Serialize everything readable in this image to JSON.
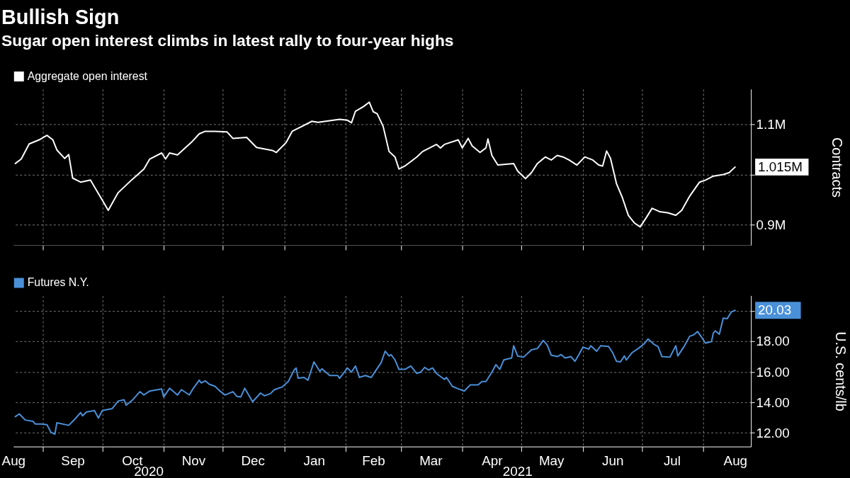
{
  "chart_data": [
    {
      "type": "line",
      "title": "Bullish Sign",
      "subtitle": "Sugar open interest climbs in latest rally to four-year highs",
      "ylabel": "Contracts",
      "grid": true,
      "legend": "top left",
      "tick_labels": "y",
      "xlim": [
        "2020-08-17",
        "2021-08-25"
      ],
      "xticks": [
        {
          "value": "2020-09-01",
          "label": null
        },
        {
          "value": "2020-10-01",
          "label": null
        },
        {
          "value": "2020-11-01",
          "label": null
        },
        {
          "value": "2020-12-01",
          "label": null
        },
        {
          "value": "2021-01-01",
          "label": null
        },
        {
          "value": "2021-02-01",
          "label": null
        },
        {
          "value": "2021-03-01",
          "label": null
        },
        {
          "value": "2021-04-01",
          "label": null
        },
        {
          "value": "2021-05-01",
          "label": null
        },
        {
          "value": "2021-06-01",
          "label": null
        },
        {
          "value": "2021-07-01",
          "label": null
        },
        {
          "value": "2021-08-01",
          "label": null
        }
      ],
      "ylim": [
        0.86,
        1.17
      ],
      "yticks": [
        {
          "value": 0.9,
          "label": "0.9M"
        },
        {
          "value": 1.0,
          "label": null
        },
        {
          "value": 1.1,
          "label": "1.1M"
        }
      ],
      "x": [
        "2020-08-18",
        "2020-08-21",
        "2020-08-25",
        "2020-08-30",
        "2020-09-03",
        "2020-09-06",
        "2020-09-08",
        "2020-09-12",
        "2020-09-14",
        "2020-09-16",
        "2020-09-20",
        "2020-09-25",
        "2020-10-04",
        "2020-10-09",
        "2020-10-16",
        "2020-10-22",
        "2020-10-25",
        "2020-10-31",
        "2020-11-02",
        "2020-11-04",
        "2020-11-08",
        "2020-11-15",
        "2020-11-19",
        "2020-11-22",
        "2020-11-27",
        "2020-12-03",
        "2020-12-06",
        "2020-12-13",
        "2020-12-18",
        "2020-12-26",
        "2020-12-28",
        "2021-01-02",
        "2021-01-05",
        "2021-01-10",
        "2021-01-15",
        "2021-01-18",
        "2021-01-29",
        "2021-02-02",
        "2021-02-04",
        "2021-02-06",
        "2021-02-10",
        "2021-02-13",
        "2021-02-15",
        "2021-02-17",
        "2021-02-20",
        "2021-02-23",
        "2021-02-26",
        "2021-02-28",
        "2021-03-03",
        "2021-03-09",
        "2021-03-12",
        "2021-03-19",
        "2021-03-21",
        "2021-03-23",
        "2021-03-30",
        "2021-04-01",
        "2021-04-04",
        "2021-04-06",
        "2021-04-10",
        "2021-04-13",
        "2021-04-14",
        "2021-04-16",
        "2021-04-19",
        "2021-04-27",
        "2021-04-29",
        "2021-05-03",
        "2021-05-06",
        "2021-05-09",
        "2021-05-13",
        "2021-05-16",
        "2021-05-19",
        "2021-05-22",
        "2021-05-25",
        "2021-05-29",
        "2021-06-02",
        "2021-06-06",
        "2021-06-09",
        "2021-06-11",
        "2021-06-13",
        "2021-06-15",
        "2021-06-18",
        "2021-06-21",
        "2021-06-24",
        "2021-06-27",
        "2021-06-30",
        "2021-07-03",
        "2021-07-06",
        "2021-07-10",
        "2021-07-14",
        "2021-07-18",
        "2021-07-21",
        "2021-07-25",
        "2021-07-30",
        "2021-08-02",
        "2021-08-06",
        "2021-08-11",
        "2021-08-14",
        "2021-08-17"
      ],
      "series": [
        {
          "name": "Aggregate open interest",
          "color": "#ffffff",
          "values": [
            1.022,
            1.031,
            1.061,
            1.069,
            1.078,
            1.069,
            1.049,
            1.032,
            1.04,
            0.993,
            0.985,
            0.989,
            0.929,
            0.964,
            0.99,
            1.011,
            1.031,
            1.043,
            1.031,
            1.043,
            1.039,
            1.064,
            1.081,
            1.086,
            1.086,
            1.085,
            1.072,
            1.074,
            1.054,
            1.048,
            1.044,
            1.064,
            1.086,
            1.096,
            1.106,
            1.104,
            1.11,
            1.108,
            1.103,
            1.126,
            1.135,
            1.144,
            1.125,
            1.121,
            1.096,
            1.046,
            1.035,
            1.011,
            1.017,
            1.035,
            1.046,
            1.06,
            1.053,
            1.06,
            1.069,
            1.053,
            1.072,
            1.057,
            1.044,
            1.053,
            1.071,
            1.038,
            1.019,
            1.022,
            1.007,
            0.992,
            1.004,
            1.022,
            1.035,
            1.029,
            1.038,
            1.035,
            1.029,
            1.019,
            1.035,
            1.029,
            1.019,
            1.017,
            1.047,
            1.032,
            0.982,
            0.954,
            0.919,
            0.904,
            0.896,
            0.914,
            0.933,
            0.926,
            0.924,
            0.919,
            0.929,
            0.957,
            0.985,
            0.989,
            0.997,
            1.0,
            1.004,
            1.015
          ],
          "value_labels": [
            null,
            null,
            null,
            null,
            null,
            null,
            null,
            null,
            null,
            null,
            null,
            null,
            null,
            null,
            null,
            null,
            null,
            null,
            null,
            null,
            null,
            null,
            null,
            null,
            null,
            null,
            null,
            null,
            null,
            null,
            null,
            null,
            null,
            null,
            null,
            null,
            null,
            null,
            null,
            null,
            null,
            null,
            null,
            null,
            null,
            null,
            null,
            null,
            null,
            null,
            null,
            null,
            null,
            null,
            null,
            null,
            null,
            null,
            null,
            null,
            null,
            null,
            null,
            null,
            null,
            null,
            null,
            null,
            null,
            null,
            null,
            null,
            null,
            null,
            null,
            null,
            null,
            null,
            null,
            null,
            null,
            null,
            null,
            null,
            null,
            null,
            null,
            null,
            null,
            null,
            null,
            null,
            null,
            null,
            null,
            null,
            null,
            "1.015M"
          ]
        }
      ]
    },
    {
      "type": "line",
      "ylabel": "U.S. cents/lb",
      "grid": true,
      "legend": "top left",
      "annotations": [
        "2020",
        "2021"
      ],
      "xlim": [
        "2020-08-17",
        "2021-08-25"
      ],
      "xticks": [
        {
          "value": "2020-08-17",
          "label": "Aug"
        },
        {
          "value": "2020-09-01",
          "label": null
        },
        {
          "value": "2020-09-16",
          "label": "Sep"
        },
        {
          "value": "2020-10-01",
          "label": null
        },
        {
          "value": "2020-10-16",
          "label": "Oct"
        },
        {
          "value": "2020-11-01",
          "label": null
        },
        {
          "value": "2020-11-16",
          "label": "Nov"
        },
        {
          "value": "2020-12-01",
          "label": null
        },
        {
          "value": "2020-12-16",
          "label": "Dec"
        },
        {
          "value": "2021-01-01",
          "label": null
        },
        {
          "value": "2021-01-16",
          "label": "Jan"
        },
        {
          "value": "2021-02-01",
          "label": null
        },
        {
          "value": "2021-02-15",
          "label": "Feb"
        },
        {
          "value": "2021-03-01",
          "label": null
        },
        {
          "value": "2021-03-16",
          "label": "Mar"
        },
        {
          "value": "2021-04-01",
          "label": null
        },
        {
          "value": "2021-04-16",
          "label": "Apr"
        },
        {
          "value": "2021-05-01",
          "label": null
        },
        {
          "value": "2021-05-16",
          "label": "May"
        },
        {
          "value": "2021-06-01",
          "label": null
        },
        {
          "value": "2021-06-16",
          "label": "Jun"
        },
        {
          "value": "2021-07-01",
          "label": null
        },
        {
          "value": "2021-07-16",
          "label": "Jul"
        },
        {
          "value": "2021-08-01",
          "label": null
        },
        {
          "value": "2021-08-17",
          "label": "Aug"
        }
      ],
      "ylim": [
        11.1,
        21.0
      ],
      "yticks": [
        {
          "value": 12,
          "label": "12.00"
        },
        {
          "value": 14,
          "label": "14.00"
        },
        {
          "value": 16,
          "label": "16.00"
        },
        {
          "value": 18,
          "label": "18.00"
        },
        {
          "value": 20,
          "label": null
        }
      ],
      "x": [
        "2020-08-18",
        "2020-08-20",
        "2020-08-23",
        "2020-08-27",
        "2020-08-28",
        "2020-08-31",
        "2020-09-03",
        "2020-09-05",
        "2020-09-07",
        "2020-09-08",
        "2020-09-14",
        "2020-09-17",
        "2020-09-20",
        "2020-09-21",
        "2020-09-23",
        "2020-09-27",
        "2020-09-29",
        "2020-10-01",
        "2020-10-06",
        "2020-10-09",
        "2020-10-12",
        "2020-10-13",
        "2020-10-16",
        "2020-10-20",
        "2020-10-22",
        "2020-10-25",
        "2020-10-31",
        "2020-11-01",
        "2020-11-04",
        "2020-11-08",
        "2020-11-10",
        "2020-11-14",
        "2020-11-16",
        "2020-11-19",
        "2020-11-20",
        "2020-11-22",
        "2020-11-24",
        "2020-11-27",
        "2020-11-29",
        "2020-12-02",
        "2020-12-06",
        "2020-12-08",
        "2020-12-10",
        "2020-12-12",
        "2020-12-16",
        "2020-12-20",
        "2020-12-22",
        "2020-12-25",
        "2020-12-27",
        "2020-12-31",
        "2021-01-03",
        "2021-01-06",
        "2021-01-07",
        "2021-01-08",
        "2021-01-11",
        "2021-01-13",
        "2021-01-16",
        "2021-01-19",
        "2021-01-20",
        "2021-01-24",
        "2021-01-28",
        "2021-01-29",
        "2021-02-02",
        "2021-02-04",
        "2021-02-06",
        "2021-02-08",
        "2021-02-11",
        "2021-02-14",
        "2021-02-16",
        "2021-02-19",
        "2021-02-21",
        "2021-02-23",
        "2021-02-24",
        "2021-02-26",
        "2021-02-28",
        "2021-03-03",
        "2021-03-06",
        "2021-03-09",
        "2021-03-11",
        "2021-03-13",
        "2021-03-15",
        "2021-03-17",
        "2021-03-19",
        "2021-03-23",
        "2021-03-24",
        "2021-03-27",
        "2021-03-30",
        "2021-04-02",
        "2021-04-05",
        "2021-04-09",
        "2021-04-11",
        "2021-04-13",
        "2021-04-16",
        "2021-04-18",
        "2021-04-20",
        "2021-04-22",
        "2021-04-26",
        "2021-04-27",
        "2021-04-29",
        "2021-05-02",
        "2021-05-06",
        "2021-05-09",
        "2021-05-12",
        "2021-05-14",
        "2021-05-16",
        "2021-05-19",
        "2021-05-21",
        "2021-05-23",
        "2021-05-26",
        "2021-05-28",
        "2021-05-30",
        "2021-06-01",
        "2021-06-04",
        "2021-06-05",
        "2021-06-08",
        "2021-06-10",
        "2021-06-14",
        "2021-06-16",
        "2021-06-18",
        "2021-06-20",
        "2021-06-22",
        "2021-06-23",
        "2021-06-26",
        "2021-06-29",
        "2021-07-02",
        "2021-07-04",
        "2021-07-07",
        "2021-07-09",
        "2021-07-11",
        "2021-07-15",
        "2021-07-18",
        "2021-07-19",
        "2021-07-22",
        "2021-07-25",
        "2021-07-27",
        "2021-07-29",
        "2021-07-31",
        "2021-08-02",
        "2021-08-05",
        "2021-08-06",
        "2021-08-07",
        "2021-08-09",
        "2021-08-11",
        "2021-08-13",
        "2021-08-15",
        "2021-08-17"
      ],
      "series": [
        {
          "name": "Futures N.Y.",
          "color": "#4a90d9",
          "values": [
            13.06,
            13.24,
            12.84,
            12.75,
            12.58,
            12.58,
            12.53,
            12.04,
            11.91,
            12.66,
            12.49,
            12.88,
            13.33,
            13.11,
            13.37,
            13.46,
            12.97,
            13.46,
            13.59,
            14.08,
            14.17,
            13.81,
            14.12,
            14.7,
            14.48,
            14.74,
            14.88,
            14.35,
            14.92,
            14.48,
            14.83,
            14.48,
            14.92,
            15.45,
            15.27,
            15.41,
            15.19,
            15.05,
            14.79,
            14.48,
            14.7,
            14.39,
            14.35,
            14.92,
            14.04,
            14.61,
            14.43,
            14.57,
            14.83,
            15.01,
            15.36,
            16.12,
            16.25,
            15.58,
            15.63,
            15.45,
            16.65,
            16.03,
            16.2,
            15.76,
            15.76,
            15.58,
            16.25,
            15.98,
            16.38,
            15.63,
            15.76,
            15.63,
            16.03,
            16.6,
            17.35,
            17.04,
            17.13,
            16.78,
            16.16,
            16.16,
            16.38,
            15.89,
            15.98,
            16.29,
            16.12,
            16.25,
            15.89,
            15.5,
            15.63,
            15.05,
            14.88,
            14.74,
            15.14,
            15.14,
            15.36,
            15.36,
            15.98,
            16.47,
            16.16,
            16.78,
            16.91,
            17.71,
            17.04,
            16.96,
            17.44,
            17.53,
            18.06,
            17.75,
            17.09,
            17.0,
            17.13,
            16.91,
            17.0,
            16.69,
            17.13,
            17.62,
            17.49,
            17.71,
            17.35,
            17.71,
            17.66,
            17.27,
            16.69,
            16.65,
            17.04,
            16.78,
            17.27,
            17.53,
            17.84,
            18.15,
            17.8,
            17.66,
            17.0,
            16.96,
            17.71,
            17.04,
            17.62,
            18.33,
            18.42,
            18.64,
            18.28,
            17.88,
            17.97,
            18.55,
            18.68,
            18.46,
            19.52,
            19.48,
            19.92,
            20.03
          ],
          "value_labels": [
            null,
            null,
            null,
            null,
            null,
            null,
            null,
            null,
            null,
            null,
            null,
            null,
            null,
            null,
            null,
            null,
            null,
            null,
            null,
            null,
            null,
            null,
            null,
            null,
            null,
            null,
            null,
            null,
            null,
            null,
            null,
            null,
            null,
            null,
            null,
            null,
            null,
            null,
            null,
            null,
            null,
            null,
            null,
            null,
            null,
            null,
            null,
            null,
            null,
            null,
            null,
            null,
            null,
            null,
            null,
            null,
            null,
            null,
            null,
            null,
            null,
            null,
            null,
            null,
            null,
            null,
            null,
            null,
            null,
            null,
            null,
            null,
            null,
            null,
            null,
            null,
            null,
            null,
            null,
            null,
            null,
            null,
            null,
            null,
            null,
            null,
            null,
            null,
            null,
            null,
            null,
            null,
            null,
            null,
            null,
            null,
            null,
            null,
            null,
            null,
            null,
            null,
            null,
            null,
            null,
            null,
            null,
            null,
            null,
            null,
            null,
            null,
            null,
            null,
            null,
            null,
            null,
            null,
            null,
            null,
            null,
            null,
            null,
            null,
            null,
            null,
            null,
            null,
            null,
            null,
            null,
            null,
            null,
            null,
            null,
            null,
            null,
            null,
            null,
            null,
            null,
            null,
            null,
            null,
            null,
            "20.03"
          ]
        }
      ]
    }
  ]
}
